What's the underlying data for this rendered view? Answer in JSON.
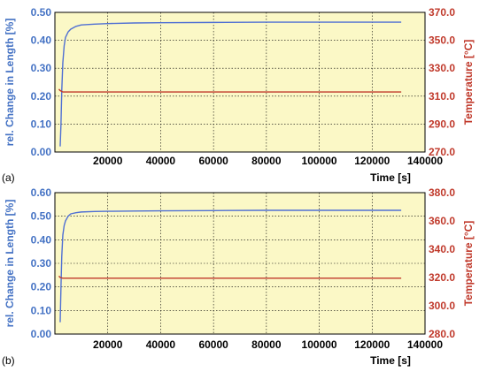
{
  "colors": {
    "plot_background": "#fbf8c6",
    "left_axis": "#4472c4",
    "right_axis": "#c0392b",
    "length_series": "#4f6fd3",
    "temperature_series": "#c0392b",
    "grid": "#000000",
    "axis_text": "#000000"
  },
  "chart_data": [
    {
      "panel_label": "(a)",
      "type": "line",
      "xlabel": "Time   [s]",
      "ylabel_left": "rel. Change in Length  [%]",
      "ylabel_right": "Temperature  [°C]",
      "xlim": [
        0,
        140000
      ],
      "ylim_left": [
        0,
        0.5
      ],
      "ylim_right": [
        270,
        370
      ],
      "x_ticks": [
        "20000",
        "40000",
        "60000",
        "80000",
        "100000",
        "120000",
        "140000"
      ],
      "y_left_ticks": [
        "0.00",
        "0.10",
        "0.20",
        "0.30",
        "0.40",
        "0.50"
      ],
      "y_right_ticks": [
        "270.0",
        "290.0",
        "310.0",
        "330.0",
        "350.0",
        "370.0"
      ],
      "grid": true,
      "series": [
        {
          "axis": "left",
          "x": [
            2000,
            2300,
            2600,
            3000,
            3500,
            4000,
            5000,
            6000,
            8000,
            10000,
            15000,
            20000,
            30000,
            40000,
            60000,
            80000,
            100000,
            120000,
            131000
          ],
          "y": [
            0.02,
            0.1,
            0.22,
            0.32,
            0.38,
            0.41,
            0.43,
            0.44,
            0.45,
            0.455,
            0.458,
            0.46,
            0.462,
            0.463,
            0.464,
            0.465,
            0.465,
            0.465,
            0.465
          ]
        },
        {
          "axis": "right",
          "x": [
            1500,
            2000,
            3000,
            20000,
            60000,
            100000,
            131000
          ],
          "y": [
            315,
            314,
            313,
            313,
            313,
            313,
            313
          ]
        }
      ]
    },
    {
      "panel_label": "(b)",
      "type": "line",
      "xlabel": "Time   [s]",
      "ylabel_left": "rel. Change in Length  [%]",
      "ylabel_right": "Temperature  [°C]",
      "xlim": [
        0,
        140000
      ],
      "ylim_left": [
        0,
        0.6
      ],
      "ylim_right": [
        280,
        380
      ],
      "x_ticks": [
        "20000",
        "40000",
        "60000",
        "80000",
        "100000",
        "120000",
        "140000"
      ],
      "y_left_ticks": [
        "0.00",
        "0.10",
        "0.20",
        "0.30",
        "0.40",
        "0.50",
        "0.60"
      ],
      "y_right_ticks": [
        "280.0",
        "300.0",
        "320.0",
        "340.0",
        "360.0",
        "380.0"
      ],
      "grid": true,
      "series": [
        {
          "axis": "left",
          "x": [
            2000,
            2300,
            2600,
            3000,
            3500,
            4000,
            5000,
            6000,
            8000,
            10000,
            15000,
            20000,
            30000,
            40000,
            60000,
            80000,
            100000,
            120000,
            131000
          ],
          "y": [
            0.05,
            0.2,
            0.33,
            0.42,
            0.46,
            0.48,
            0.5,
            0.51,
            0.515,
            0.518,
            0.52,
            0.521,
            0.522,
            0.523,
            0.524,
            0.525,
            0.525,
            0.525,
            0.525
          ]
        },
        {
          "axis": "right",
          "x": [
            1500,
            2000,
            3000,
            20000,
            60000,
            100000,
            131000
          ],
          "y": [
            321,
            320,
            319.5,
            319.5,
            319.5,
            319.5,
            319.5
          ]
        }
      ]
    }
  ]
}
